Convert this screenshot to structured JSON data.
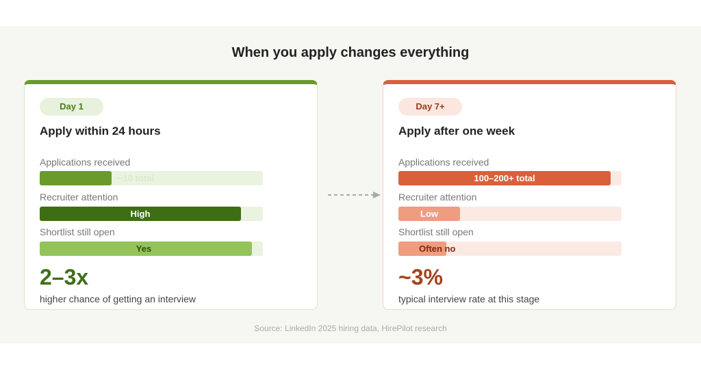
{
  "title": "When you apply changes everything",
  "cards": [
    {
      "badge": "Day 1",
      "heading": "Apply within 24 hours",
      "rows": [
        {
          "label": "Applications received",
          "bar_text": "~10 total"
        },
        {
          "label": "Recruiter attention",
          "bar_text": "High"
        },
        {
          "label": "Shortlist still open",
          "bar_text": "Yes"
        }
      ],
      "stat": "2–3x",
      "stat_caption": "higher chance of getting an interview"
    },
    {
      "badge": "Day 7+",
      "heading": "Apply after one week",
      "rows": [
        {
          "label": "Applications received",
          "bar_text": "100–200+ total"
        },
        {
          "label": "Recruiter attention",
          "bar_text": "Low"
        },
        {
          "label": "Shortlist still open",
          "bar_text": "Often no"
        }
      ],
      "stat": "~3%",
      "stat_caption": "typical interview rate at this stage"
    }
  ],
  "source": "Source: LinkedIn 2025 hiring data, HirePilot research"
}
